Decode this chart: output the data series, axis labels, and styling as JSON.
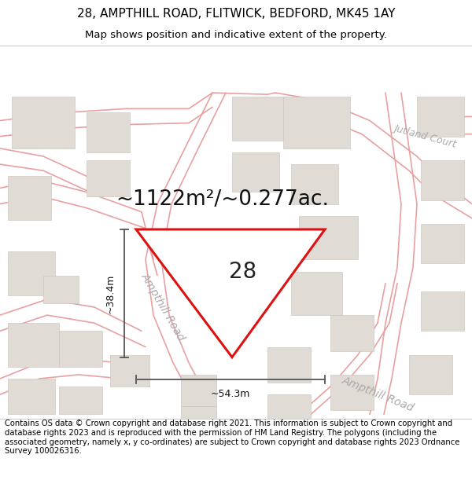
{
  "title_line1": "28, AMPTHILL ROAD, FLITWICK, BEDFORD, MK45 1AY",
  "title_line2": "Map shows position and indicative extent of the property.",
  "copyright_text": "Contains OS data © Crown copyright and database right 2021. This information is subject to Crown copyright and database rights 2023 and is reproduced with the permission of HM Land Registry. The polygons (including the associated geometry, namely x, y co-ordinates) are subject to Crown copyright and database rights 2023 Ordnance Survey 100026316.",
  "area_text": "~1122m²/~0.277ac.",
  "property_number": "28",
  "dim_vertical": "~38.4m",
  "dim_horizontal": "~54.3m",
  "road_label_diag1": "Ampthill Road",
  "road_label_diag2": "Ampthill Road",
  "court_label": "Jutland Court",
  "map_bg": "#f7f4f1",
  "road_color": "#e8a0a0",
  "road_lw": 1.2,
  "plot_fill": "#ffffff",
  "plot_outline": "#dd1111",
  "dim_line_color": "#555555",
  "building_fill": "#e0dbd5",
  "building_edge": "#c8c0b8",
  "title_fontsize": 11,
  "subtitle_fontsize": 9.5,
  "area_fontsize": 19,
  "prop_num_fontsize": 20,
  "copyright_fontsize": 7.2,
  "road_label_fontsize": 10,
  "court_label_fontsize": 9
}
